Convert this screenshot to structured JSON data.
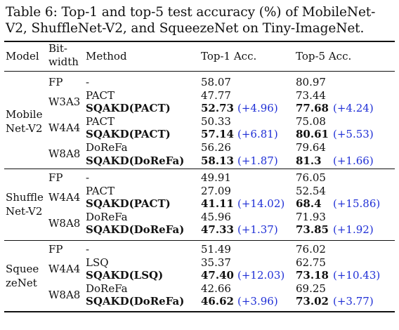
{
  "caption": "Table 6: Top-1 and top-5 test accuracy (%) of MobileNet-V2, ShuffleNet-V2, and SqueezeNet on Tiny-ImageNet.",
  "headers": {
    "model": "Model",
    "bitwidth_line1": "Bit-",
    "bitwidth_line2": "width",
    "method": "Method",
    "top1": "Top-1 Acc.",
    "top5": "Top-5 Acc."
  },
  "groups": [
    {
      "model_line1": "Mobile",
      "model_line2": "Net-V2",
      "rows": [
        {
          "bitwidth": "FP",
          "method": "-",
          "top1": "58.07",
          "top1_delta": "",
          "top5": "80.97",
          "top5_delta": "",
          "bold": false
        },
        {
          "bitwidth": "W3A3",
          "method": "PACT",
          "top1": "47.77",
          "top1_delta": "",
          "top5": "73.44",
          "top5_delta": "",
          "bold": false
        },
        {
          "bitwidth": "",
          "method": "SQAKD(PACT)",
          "top1": "52.73",
          "top1_delta": "(+4.96)",
          "top5": "77.68",
          "top5_delta": "(+4.24)",
          "bold": true
        },
        {
          "bitwidth": "W4A4",
          "method": "PACT",
          "top1": "50.33",
          "top1_delta": "",
          "top5": "75.08",
          "top5_delta": "",
          "bold": false
        },
        {
          "bitwidth": "",
          "method": "SQAKD(PACT)",
          "top1": "57.14",
          "top1_delta": "(+6.81)",
          "top5": "80.61",
          "top5_delta": "(+5.53)",
          "bold": true
        },
        {
          "bitwidth": "W8A8",
          "method": "DoReFa",
          "top1": "56.26",
          "top1_delta": "",
          "top5": "79.64",
          "top5_delta": "",
          "bold": false
        },
        {
          "bitwidth": "",
          "method": "SQAKD(DoReFa)",
          "top1": "58.13",
          "top1_delta": "(+1.87)",
          "top5": "81.3",
          "top5_delta": "(+1.66)",
          "bold": true
        }
      ]
    },
    {
      "model_line1": "Shuffle",
      "model_line2": "Net-V2",
      "rows": [
        {
          "bitwidth": "FP",
          "method": "-",
          "top1": "49.91",
          "top1_delta": "",
          "top5": "76.05",
          "top5_delta": "",
          "bold": false
        },
        {
          "bitwidth": "W4A4",
          "method": "PACT",
          "top1": "27.09",
          "top1_delta": "",
          "top5": "52.54",
          "top5_delta": "",
          "bold": false
        },
        {
          "bitwidth": "",
          "method": "SQAKD(PACT)",
          "top1": "41.11",
          "top1_delta": "(+14.02)",
          "top5": "68.4",
          "top5_delta": "(+15.86)",
          "bold": true
        },
        {
          "bitwidth": "W8A8",
          "method": "DoReFa",
          "top1": "45.96",
          "top1_delta": "",
          "top5": "71.93",
          "top5_delta": "",
          "bold": false
        },
        {
          "bitwidth": "",
          "method": "SQAKD(DoReFa)",
          "top1": "47.33",
          "top1_delta": "(+1.37)",
          "top5": "73.85",
          "top5_delta": "(+1.92)",
          "bold": true
        }
      ]
    },
    {
      "model_line1": "Squee",
      "model_line2": "zeNet",
      "rows": [
        {
          "bitwidth": "FP",
          "method": "-",
          "top1": "51.49",
          "top1_delta": "",
          "top5": "76.02",
          "top5_delta": "",
          "bold": false
        },
        {
          "bitwidth": "W4A4",
          "method": "LSQ",
          "top1": "35.37",
          "top1_delta": "",
          "top5": "62.75",
          "top5_delta": "",
          "bold": false
        },
        {
          "bitwidth": "",
          "method": "SQAKD(LSQ)",
          "top1": "47.40",
          "top1_delta": "(+12.03)",
          "top5": "73.18",
          "top5_delta": "(+10.43)",
          "bold": true
        },
        {
          "bitwidth": "W8A8",
          "method": "DoReFa",
          "top1": "42.66",
          "top1_delta": "",
          "top5": "69.25",
          "top5_delta": "",
          "bold": false
        },
        {
          "bitwidth": "",
          "method": "SQAKD(DoReFa)",
          "top1": "46.62",
          "top1_delta": "(+3.96)",
          "top5": "73.02",
          "top5_delta": "(+3.77)",
          "bold": true
        }
      ]
    }
  ]
}
